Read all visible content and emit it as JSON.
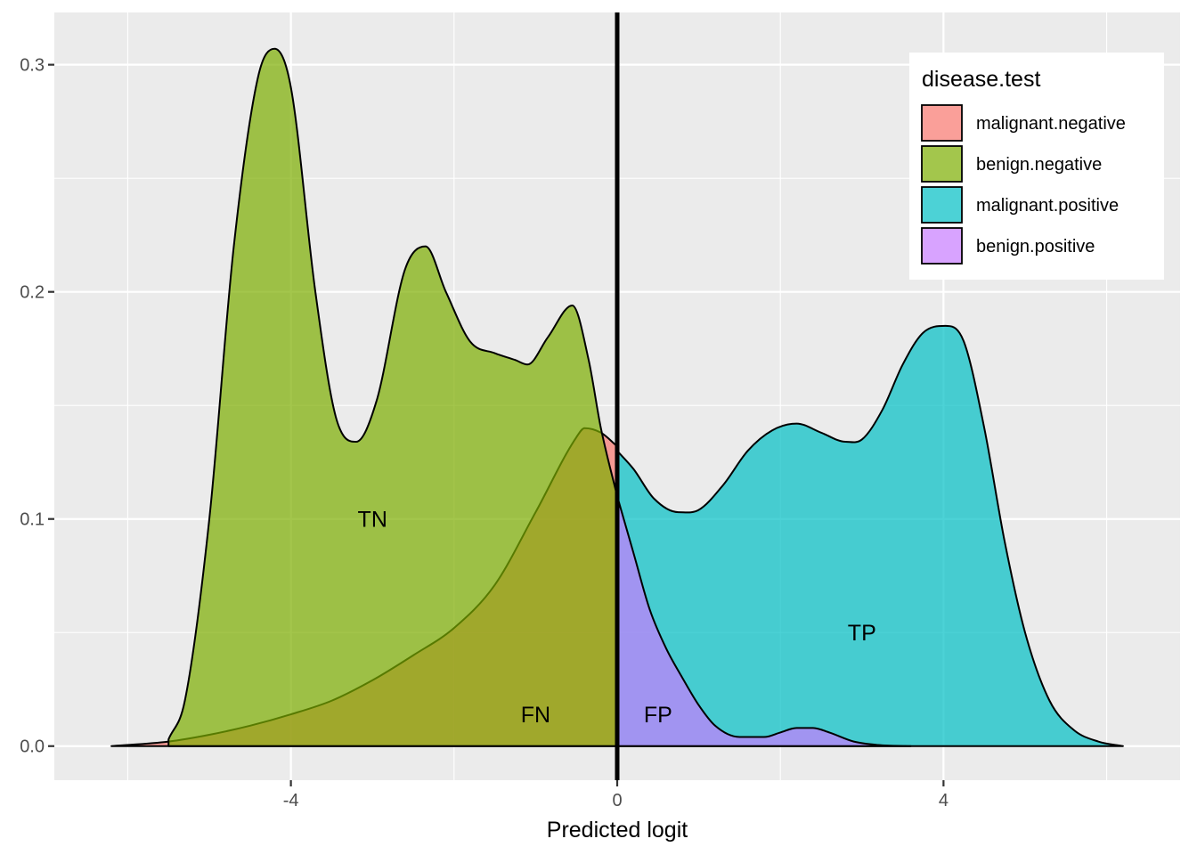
{
  "chart_data": {
    "type": "area",
    "xlabel": "Predicted logit",
    "ylabel": "",
    "xlim": [
      -6.9,
      6.9
    ],
    "ylim": [
      -0.015,
      0.323
    ],
    "x_ticks": [
      -4,
      0,
      4
    ],
    "y_ticks": [
      0.0,
      0.1,
      0.2,
      0.3
    ],
    "x_tick_labels": [
      "-4",
      "0",
      "4"
    ],
    "y_tick_labels": [
      "0.0",
      "0.1",
      "0.2",
      "0.3"
    ],
    "grid": true,
    "threshold_line_x": 0,
    "legend": {
      "title": "disease.test",
      "position": "top-right",
      "items": [
        {
          "label": "malignant.negative",
          "color": "#F8766D"
        },
        {
          "label": "benign.negative",
          "color": "#7CAE00"
        },
        {
          "label": "malignant.positive",
          "color": "#00BFC4"
        },
        {
          "label": "benign.positive",
          "color": "#C77CFF"
        }
      ]
    },
    "series": [
      {
        "name": "malignant.negative",
        "color": "#F8766D",
        "x": [
          -6.2,
          -5.5,
          -5.0,
          -4.5,
          -4.0,
          -3.5,
          -3.0,
          -2.5,
          -2.0,
          -1.5,
          -1.0,
          -0.5,
          -0.4,
          -0.2,
          0.0
        ],
        "y": [
          0.0,
          0.002,
          0.005,
          0.009,
          0.014,
          0.02,
          0.029,
          0.04,
          0.052,
          0.071,
          0.103,
          0.136,
          0.14,
          0.138,
          0.132
        ]
      },
      {
        "name": "benign.negative",
        "color": "#7CAE00",
        "x": [
          -5.5,
          -5.3,
          -5.0,
          -4.7,
          -4.4,
          -4.2,
          -4.0,
          -3.7,
          -3.45,
          -3.2,
          -2.95,
          -2.6,
          -2.35,
          -2.1,
          -1.8,
          -1.5,
          -1.25,
          -1.1,
          -0.85,
          -0.55,
          -0.35,
          -0.2,
          0.0
        ],
        "y": [
          0.003,
          0.02,
          0.1,
          0.22,
          0.295,
          0.307,
          0.29,
          0.2,
          0.145,
          0.134,
          0.152,
          0.21,
          0.22,
          0.2,
          0.178,
          0.173,
          0.17,
          0.168,
          0.18,
          0.194,
          0.17,
          0.14,
          0.11
        ]
      },
      {
        "name": "malignant.positive",
        "color": "#00BFC4",
        "x": [
          0.0,
          0.2,
          0.45,
          0.75,
          1.0,
          1.3,
          1.6,
          1.9,
          2.2,
          2.5,
          2.8,
          3.0,
          3.25,
          3.5,
          3.75,
          4.05,
          4.25,
          4.5,
          4.75,
          5.0,
          5.3,
          5.6,
          5.9,
          6.2
        ],
        "y": [
          0.13,
          0.122,
          0.109,
          0.103,
          0.104,
          0.115,
          0.13,
          0.139,
          0.142,
          0.138,
          0.134,
          0.135,
          0.148,
          0.168,
          0.182,
          0.185,
          0.178,
          0.14,
          0.09,
          0.05,
          0.02,
          0.007,
          0.002,
          0.0
        ]
      },
      {
        "name": "benign.positive",
        "color": "#C77CFF",
        "x": [
          0.0,
          0.2,
          0.4,
          0.6,
          0.8,
          1.0,
          1.2,
          1.5,
          1.8,
          2.0,
          2.2,
          2.4,
          2.6,
          2.9,
          3.2,
          3.6
        ],
        "y": [
          0.11,
          0.085,
          0.06,
          0.043,
          0.03,
          0.018,
          0.009,
          0.004,
          0.004,
          0.006,
          0.008,
          0.008,
          0.006,
          0.002,
          0.0005,
          0.0
        ]
      }
    ],
    "annotations": [
      {
        "text": "TN",
        "x": -3.0,
        "y": 0.1
      },
      {
        "text": "FN",
        "x": -1.0,
        "y": 0.014
      },
      {
        "text": "FP",
        "x": 0.5,
        "y": 0.014
      },
      {
        "text": "TP",
        "x": 3.0,
        "y": 0.05
      }
    ]
  }
}
